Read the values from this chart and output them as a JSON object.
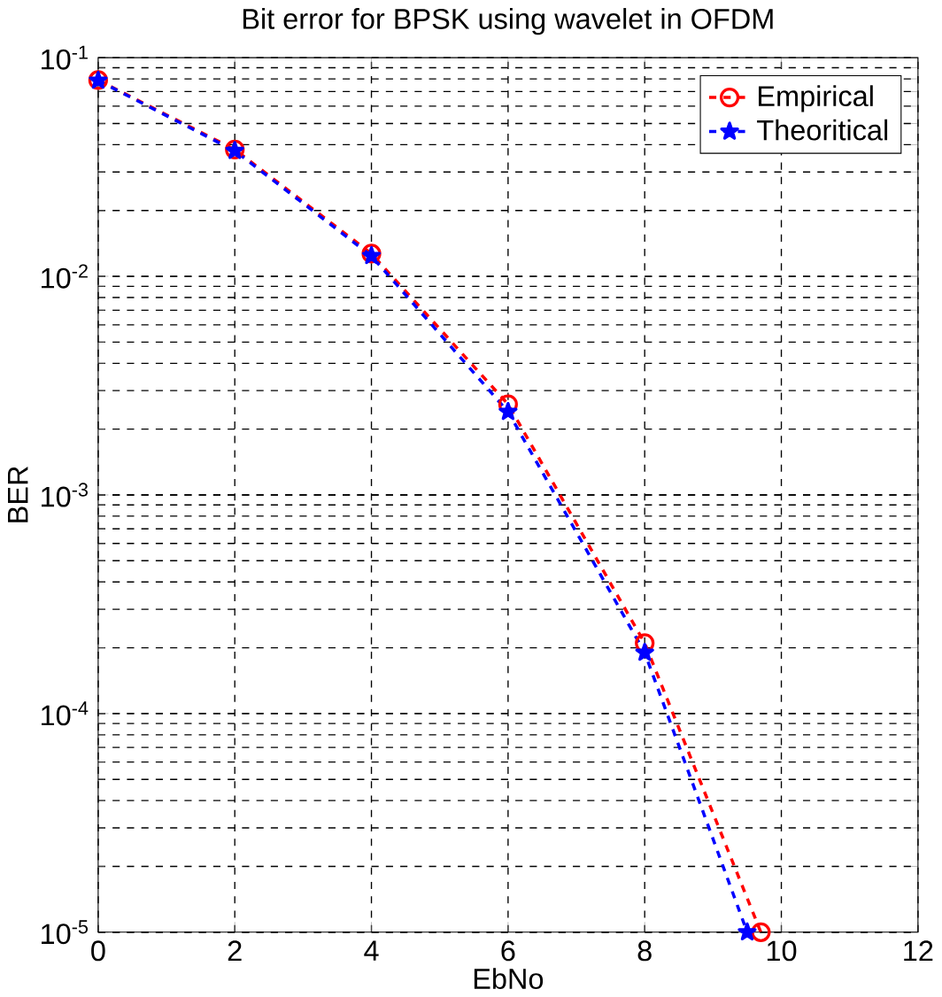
{
  "chart_data": {
    "type": "line",
    "title": "Bit error for BPSK using wavelet in OFDM",
    "xlabel": "EbNo",
    "ylabel": "BER",
    "series": [
      {
        "name": "Empirical",
        "color": "#ff0000",
        "marker": "circle",
        "line_style": "dashed",
        "x": [
          0,
          2,
          4,
          6,
          8,
          9.7
        ],
        "values": [
          0.079,
          0.038,
          0.0127,
          0.0026,
          0.00021,
          1e-05
        ]
      },
      {
        "name": "Theoritical",
        "color": "#0000ff",
        "marker": "star",
        "line_style": "dashed",
        "x": [
          0,
          2,
          4,
          6,
          8,
          9.5
        ],
        "values": [
          0.0786,
          0.0375,
          0.0124,
          0.0024,
          0.00019,
          1e-05
        ]
      }
    ],
    "xlim": [
      0,
      12
    ],
    "xticks": [
      0,
      2,
      4,
      6,
      8,
      10,
      12
    ],
    "ylim": [
      1e-05,
      0.1
    ],
    "yticks": [
      {
        "value": 1e-05,
        "label": "10$^{-5}$"
      },
      {
        "value": 0.0001,
        "label": "10$^{-4}$"
      },
      {
        "value": 0.001,
        "label": "10$^{-3}$"
      },
      {
        "value": 0.01,
        "label": "10$^{-2}$"
      },
      {
        "value": 0.1,
        "label": "10$^{-1}$"
      }
    ],
    "log": "y",
    "grid": true,
    "legend": "top right"
  }
}
